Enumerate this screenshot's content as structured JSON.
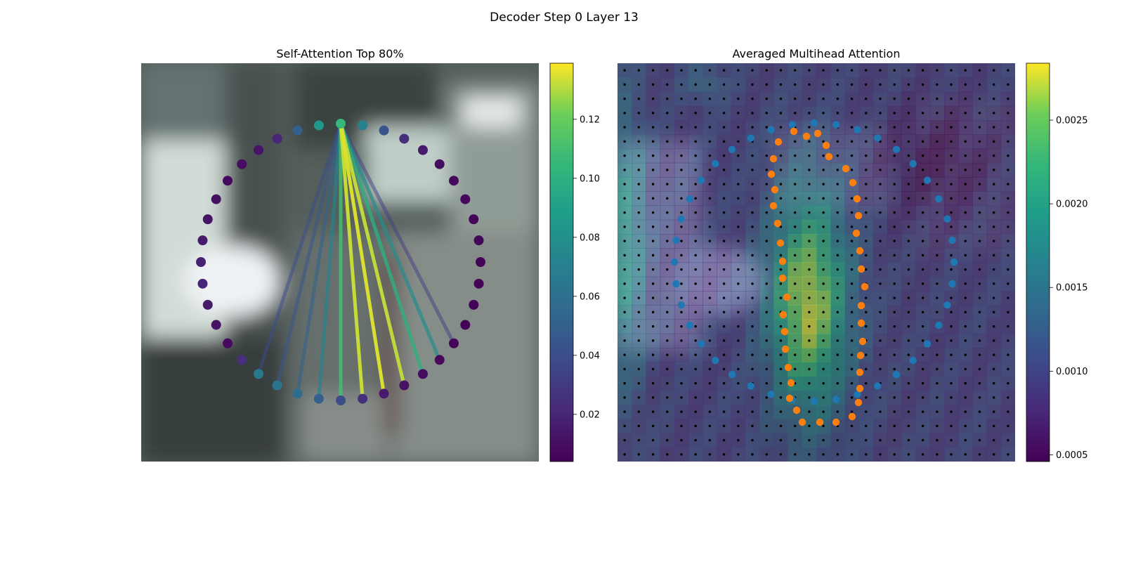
{
  "figure": {
    "title": "Decoder Step 0 Layer 13"
  },
  "chart_data": [
    {
      "type": "scatter",
      "title": "Self-Attention Top 80%",
      "description_points": "polygon of 40 vertices arranged on an ellipse; color = self-attention weight from the query vertex (top)",
      "query_index": 0,
      "colormap": "viridis",
      "colorbar": {
        "min": 0.004,
        "max": 0.139,
        "ticks": [
          0.02,
          0.04,
          0.06,
          0.08,
          0.1,
          0.12
        ],
        "tick_labels": [
          "0.02",
          "0.04",
          "0.06",
          "0.08",
          "0.10",
          "0.12"
        ]
      },
      "vertex_weights": [
        0.105,
        0.07,
        0.045,
        0.025,
        0.015,
        0.01,
        0.008,
        0.007,
        0.006,
        0.006,
        0.005,
        0.005,
        0.005,
        0.005,
        0.006,
        0.007,
        0.009,
        0.012,
        0.015,
        0.025,
        0.04,
        0.05,
        0.058,
        0.062,
        0.065,
        0.025,
        0.008,
        0.012,
        0.015,
        0.02,
        0.018,
        0.015,
        0.012,
        0.01,
        0.008,
        0.009,
        0.012,
        0.02,
        0.05,
        0.085
      ],
      "edges": [
        {
          "to": 20,
          "weight": 0.11
        },
        {
          "to": 21,
          "weight": 0.073
        },
        {
          "to": 22,
          "weight": 0.052
        },
        {
          "to": 23,
          "weight": 0.045
        },
        {
          "to": 24,
          "weight": 0.04
        },
        {
          "to": 19,
          "weight": 0.133
        },
        {
          "to": 18,
          "weight": 0.135
        },
        {
          "to": 17,
          "weight": 0.132
        },
        {
          "to": 16,
          "weight": 0.1
        },
        {
          "to": 15,
          "weight": 0.078
        },
        {
          "to": 14,
          "weight": 0.032
        }
      ]
    },
    {
      "type": "heatmap",
      "title": "Averaged Multihead Attention",
      "colormap": "viridis",
      "grid": "28x28",
      "colorbar": {
        "min": 0.00046,
        "max": 0.00284,
        "ticks": [
          0.0005,
          0.001,
          0.0015,
          0.002,
          0.0025
        ],
        "tick_labels": [
          "0.0005",
          "0.0010",
          "0.0015",
          "0.0020",
          "0.0025"
        ]
      },
      "series": [
        {
          "color": "#1f77b4"
        },
        {
          "color": "#ff7f0e"
        }
      ]
    }
  ]
}
